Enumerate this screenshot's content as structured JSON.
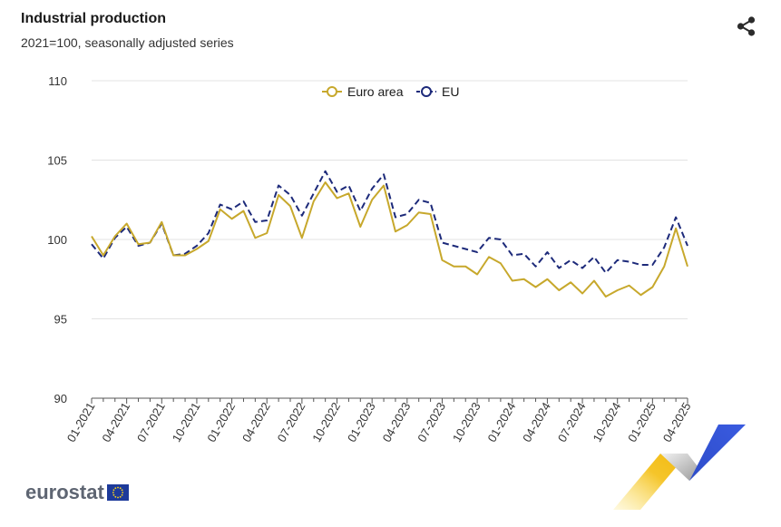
{
  "title": "Industrial production",
  "subtitle": "2021=100, seasonally adjusted series",
  "icons": {
    "share": "share-icon"
  },
  "logo": {
    "text": "eurostat"
  },
  "colors": {
    "euro_area": "#c7a82c",
    "eu": "#1d2a7a",
    "grid": "#e3e3e3",
    "axis": "#7a7a7a"
  },
  "chart_data": {
    "type": "line",
    "title": "Industrial production",
    "subtitle": "2021=100, seasonally adjusted series",
    "ylim": [
      90,
      110
    ],
    "yticks": [
      90,
      95,
      100,
      105,
      110
    ],
    "legend_position": "top-center",
    "grid": true,
    "x_tick_labels": [
      "01-2021",
      "04-2021",
      "07-2021",
      "10-2021",
      "01-2022",
      "04-2022",
      "07-2022",
      "10-2022",
      "01-2023",
      "04-2023",
      "07-2023",
      "10-2023",
      "01-2024",
      "04-2024",
      "07-2024",
      "10-2024",
      "01-2025",
      "04-2025"
    ],
    "series": [
      {
        "name": "Euro area",
        "style": "solid",
        "values": [
          100.2,
          99.0,
          100.2,
          101.0,
          99.7,
          99.8,
          101.1,
          99.0,
          99.0,
          99.4,
          99.9,
          101.9,
          101.3,
          101.8,
          100.1,
          100.4,
          102.8,
          102.1,
          100.1,
          102.4,
          103.6,
          102.6,
          102.9,
          100.8,
          102.5,
          103.4,
          100.5,
          100.9,
          101.7,
          101.6,
          98.7,
          98.3,
          98.3,
          97.8,
          98.9,
          98.5,
          97.4,
          97.5,
          97.0,
          97.5,
          96.8,
          97.3,
          96.6,
          97.4,
          96.4,
          96.8,
          97.1,
          96.5,
          97.0,
          98.3,
          100.7,
          98.3
        ]
      },
      {
        "name": "EU",
        "style": "dashed",
        "values": [
          99.7,
          98.8,
          100.1,
          100.8,
          99.6,
          99.8,
          101.0,
          99.0,
          99.1,
          99.6,
          100.4,
          102.2,
          101.9,
          102.4,
          101.1,
          101.2,
          103.4,
          102.8,
          101.5,
          102.9,
          104.3,
          103.0,
          103.4,
          101.8,
          103.2,
          104.1,
          101.4,
          101.6,
          102.5,
          102.3,
          99.8,
          99.6,
          99.4,
          99.2,
          100.1,
          100.0,
          99.0,
          99.1,
          98.3,
          99.2,
          98.2,
          98.7,
          98.2,
          98.9,
          97.9,
          98.7,
          98.6,
          98.4,
          98.4,
          99.5,
          101.4,
          99.6
        ]
      }
    ]
  }
}
